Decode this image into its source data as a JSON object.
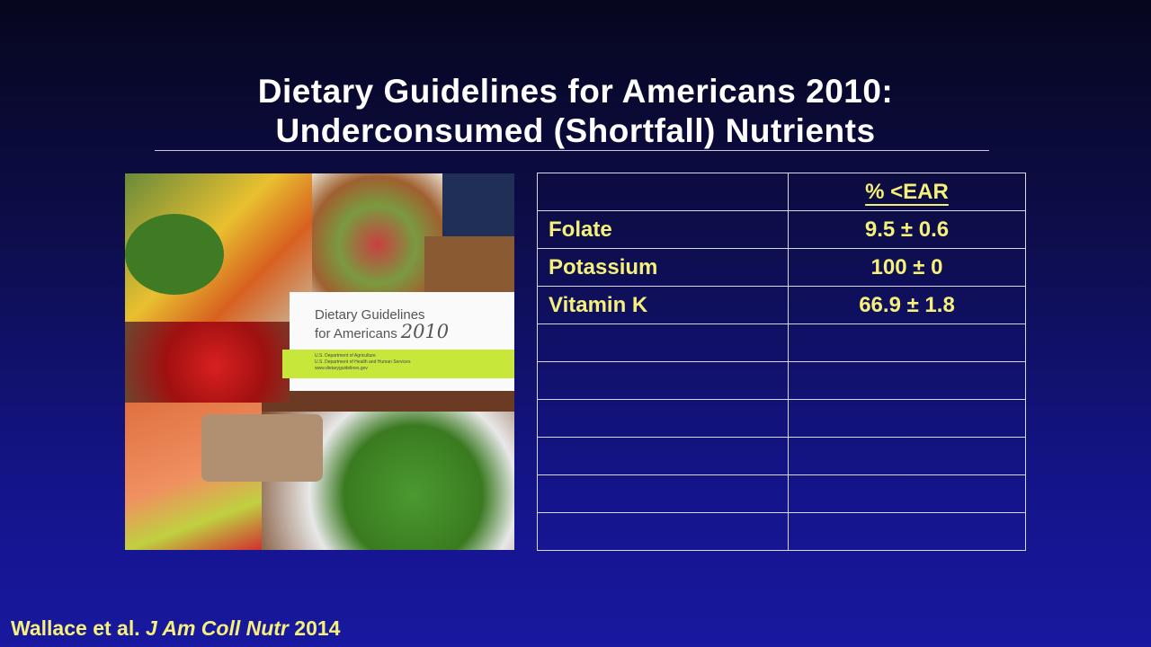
{
  "slide": {
    "title_line1": "Dietary Guidelines for Americans 2010:",
    "title_line2": "Underconsumed (Shortfall) Nutrients"
  },
  "cover": {
    "title_line1": "Dietary Guidelines",
    "title_line2": "for Americans",
    "year": "2010",
    "agency1": "U.S. Department of Agriculture",
    "agency2": "U.S. Department of Health and Human Services",
    "website": "www.dietaryguidelines.gov"
  },
  "table": {
    "header": "% <EAR",
    "rows": [
      {
        "nutrient": "Folate",
        "value": "9.5 ± 0.6"
      },
      {
        "nutrient": "Potassium",
        "value": "100 ± 0"
      },
      {
        "nutrient": "Vitamin K",
        "value": "66.9 ± 1.8"
      }
    ]
  },
  "citation": {
    "authors": "Wallace et al.",
    "journal": "J Am Coll Nutr",
    "year": "2014"
  },
  "colors": {
    "text_accent": "#f5f07a",
    "background": "#14148a"
  }
}
